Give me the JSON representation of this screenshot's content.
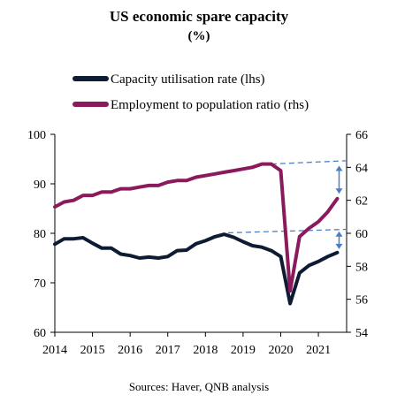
{
  "chart_data": {
    "type": "line",
    "title": "US economic spare capacity",
    "subtitle": "(%)",
    "source": "Sources: Haver, QNB analysis",
    "legend_placement": "top",
    "grid": false,
    "x_ticks": [
      "2014",
      "2015",
      "2016",
      "2017",
      "2018",
      "2019",
      "2020",
      "2021"
    ],
    "x_range": [
      2014.0,
      2021.75
    ],
    "y_left": {
      "range": [
        60,
        100
      ],
      "ticks": [
        "60",
        "70",
        "80",
        "90",
        "100"
      ]
    },
    "y_right": {
      "range": [
        54,
        66
      ],
      "ticks": [
        "54",
        "56",
        "58",
        "60",
        "62",
        "64",
        "66"
      ]
    },
    "series": [
      {
        "name": "Capacity utilisation rate (lhs)",
        "axis": "left",
        "color": "#0d1b33",
        "x": [
          2014.0,
          2014.25,
          2014.5,
          2014.75,
          2015.0,
          2015.25,
          2015.5,
          2015.75,
          2016.0,
          2016.25,
          2016.5,
          2016.75,
          2017.0,
          2017.25,
          2017.5,
          2017.75,
          2018.0,
          2018.25,
          2018.5,
          2018.75,
          2019.0,
          2019.25,
          2019.5,
          2019.75,
          2020.0,
          2020.25,
          2020.5,
          2020.75,
          2021.0,
          2021.25,
          2021.5
        ],
        "values": [
          77.8,
          78.9,
          78.9,
          79.1,
          78.0,
          77.0,
          77.0,
          75.8,
          75.5,
          75.0,
          75.2,
          75.0,
          75.3,
          76.5,
          76.6,
          77.9,
          78.5,
          79.3,
          79.8,
          79.2,
          78.3,
          77.5,
          77.2,
          76.5,
          75.3,
          65.8,
          72.0,
          73.5,
          74.3,
          75.3,
          76.1
        ]
      },
      {
        "name": "Employment to population ratio (rhs)",
        "axis": "right",
        "color": "#8b1a5c",
        "x": [
          2014.0,
          2014.25,
          2014.5,
          2014.75,
          2015.0,
          2015.25,
          2015.5,
          2015.75,
          2016.0,
          2016.25,
          2016.5,
          2016.75,
          2017.0,
          2017.25,
          2017.5,
          2017.75,
          2018.0,
          2018.25,
          2018.5,
          2018.75,
          2019.0,
          2019.25,
          2019.5,
          2019.75,
          2020.0,
          2020.25,
          2020.5,
          2020.75,
          2021.0,
          2021.25,
          2021.5
        ],
        "values": [
          61.6,
          61.9,
          62.0,
          62.3,
          62.3,
          62.5,
          62.5,
          62.7,
          62.7,
          62.8,
          62.9,
          62.9,
          63.1,
          63.2,
          63.2,
          63.4,
          63.5,
          63.6,
          63.7,
          63.8,
          63.9,
          64.0,
          64.2,
          64.2,
          63.8,
          56.5,
          59.8,
          60.3,
          60.7,
          61.3,
          62.1
        ]
      }
    ],
    "annotations": [
      {
        "type": "dashed-line",
        "axis": "right",
        "x": [
          2019.75,
          2021.75
        ],
        "y": [
          64.2,
          64.4
        ],
        "color": "#4a7fc1"
      },
      {
        "type": "double-arrow",
        "axis": "right",
        "x": 2021.55,
        "y": [
          64.1,
          62.4
        ],
        "color": "#4a7fc1"
      },
      {
        "type": "dashed-line",
        "axis": "left",
        "x": [
          2018.6,
          2021.75
        ],
        "y": [
          80.1,
          80.8
        ],
        "color": "#4a7fc1"
      },
      {
        "type": "double-arrow",
        "axis": "left",
        "x": 2021.55,
        "y": [
          80.4,
          76.8
        ],
        "color": "#4a7fc1"
      }
    ]
  }
}
